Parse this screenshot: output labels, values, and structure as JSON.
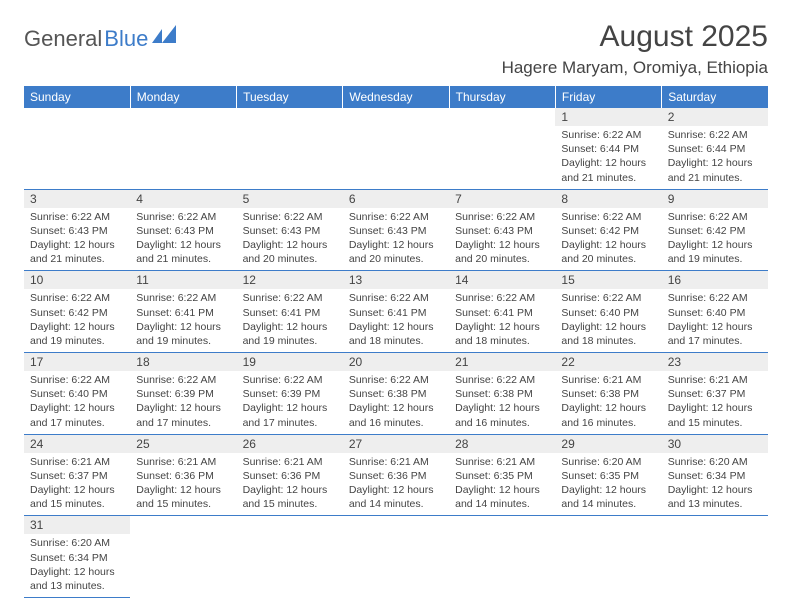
{
  "logo": {
    "text1": "General",
    "text2": "Blue"
  },
  "title": "August 2025",
  "location": "Hagere Maryam, Oromiya, Ethiopia",
  "colors": {
    "header_bg": "#3d7cc9",
    "header_text": "#ffffff",
    "daynum_bg": "#eeeeee",
    "border": "#3d7cc9",
    "text": "#444444"
  },
  "weekdays": [
    "Sunday",
    "Monday",
    "Tuesday",
    "Wednesday",
    "Thursday",
    "Friday",
    "Saturday"
  ],
  "weeks": [
    [
      null,
      null,
      null,
      null,
      null,
      {
        "n": "1",
        "sr": "6:22 AM",
        "ss": "6:44 PM",
        "dl": "12 hours and 21 minutes."
      },
      {
        "n": "2",
        "sr": "6:22 AM",
        "ss": "6:44 PM",
        "dl": "12 hours and 21 minutes."
      }
    ],
    [
      {
        "n": "3",
        "sr": "6:22 AM",
        "ss": "6:43 PM",
        "dl": "12 hours and 21 minutes."
      },
      {
        "n": "4",
        "sr": "6:22 AM",
        "ss": "6:43 PM",
        "dl": "12 hours and 21 minutes."
      },
      {
        "n": "5",
        "sr": "6:22 AM",
        "ss": "6:43 PM",
        "dl": "12 hours and 20 minutes."
      },
      {
        "n": "6",
        "sr": "6:22 AM",
        "ss": "6:43 PM",
        "dl": "12 hours and 20 minutes."
      },
      {
        "n": "7",
        "sr": "6:22 AM",
        "ss": "6:43 PM",
        "dl": "12 hours and 20 minutes."
      },
      {
        "n": "8",
        "sr": "6:22 AM",
        "ss": "6:42 PM",
        "dl": "12 hours and 20 minutes."
      },
      {
        "n": "9",
        "sr": "6:22 AM",
        "ss": "6:42 PM",
        "dl": "12 hours and 19 minutes."
      }
    ],
    [
      {
        "n": "10",
        "sr": "6:22 AM",
        "ss": "6:42 PM",
        "dl": "12 hours and 19 minutes."
      },
      {
        "n": "11",
        "sr": "6:22 AM",
        "ss": "6:41 PM",
        "dl": "12 hours and 19 minutes."
      },
      {
        "n": "12",
        "sr": "6:22 AM",
        "ss": "6:41 PM",
        "dl": "12 hours and 19 minutes."
      },
      {
        "n": "13",
        "sr": "6:22 AM",
        "ss": "6:41 PM",
        "dl": "12 hours and 18 minutes."
      },
      {
        "n": "14",
        "sr": "6:22 AM",
        "ss": "6:41 PM",
        "dl": "12 hours and 18 minutes."
      },
      {
        "n": "15",
        "sr": "6:22 AM",
        "ss": "6:40 PM",
        "dl": "12 hours and 18 minutes."
      },
      {
        "n": "16",
        "sr": "6:22 AM",
        "ss": "6:40 PM",
        "dl": "12 hours and 17 minutes."
      }
    ],
    [
      {
        "n": "17",
        "sr": "6:22 AM",
        "ss": "6:40 PM",
        "dl": "12 hours and 17 minutes."
      },
      {
        "n": "18",
        "sr": "6:22 AM",
        "ss": "6:39 PM",
        "dl": "12 hours and 17 minutes."
      },
      {
        "n": "19",
        "sr": "6:22 AM",
        "ss": "6:39 PM",
        "dl": "12 hours and 17 minutes."
      },
      {
        "n": "20",
        "sr": "6:22 AM",
        "ss": "6:38 PM",
        "dl": "12 hours and 16 minutes."
      },
      {
        "n": "21",
        "sr": "6:22 AM",
        "ss": "6:38 PM",
        "dl": "12 hours and 16 minutes."
      },
      {
        "n": "22",
        "sr": "6:21 AM",
        "ss": "6:38 PM",
        "dl": "12 hours and 16 minutes."
      },
      {
        "n": "23",
        "sr": "6:21 AM",
        "ss": "6:37 PM",
        "dl": "12 hours and 15 minutes."
      }
    ],
    [
      {
        "n": "24",
        "sr": "6:21 AM",
        "ss": "6:37 PM",
        "dl": "12 hours and 15 minutes."
      },
      {
        "n": "25",
        "sr": "6:21 AM",
        "ss": "6:36 PM",
        "dl": "12 hours and 15 minutes."
      },
      {
        "n": "26",
        "sr": "6:21 AM",
        "ss": "6:36 PM",
        "dl": "12 hours and 15 minutes."
      },
      {
        "n": "27",
        "sr": "6:21 AM",
        "ss": "6:36 PM",
        "dl": "12 hours and 14 minutes."
      },
      {
        "n": "28",
        "sr": "6:21 AM",
        "ss": "6:35 PM",
        "dl": "12 hours and 14 minutes."
      },
      {
        "n": "29",
        "sr": "6:20 AM",
        "ss": "6:35 PM",
        "dl": "12 hours and 14 minutes."
      },
      {
        "n": "30",
        "sr": "6:20 AM",
        "ss": "6:34 PM",
        "dl": "12 hours and 13 minutes."
      }
    ],
    [
      {
        "n": "31",
        "sr": "6:20 AM",
        "ss": "6:34 PM",
        "dl": "12 hours and 13 minutes."
      },
      null,
      null,
      null,
      null,
      null,
      null
    ]
  ],
  "labels": {
    "sunrise": "Sunrise:",
    "sunset": "Sunset:",
    "daylight": "Daylight:"
  }
}
